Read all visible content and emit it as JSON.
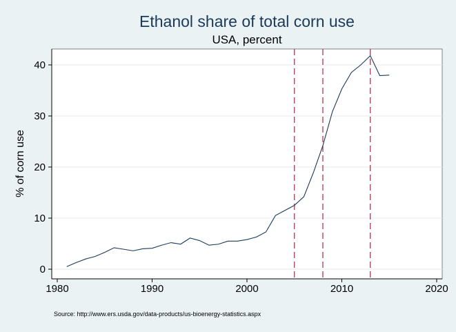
{
  "chart_data": {
    "type": "line",
    "title": "Ethanol share of total corn use",
    "subtitle": "USA, percent",
    "xlabel": "",
    "ylabel": "% of corn use",
    "xlim": [
      1980,
      2020
    ],
    "ylim": [
      0,
      43
    ],
    "x_ticks": [
      1980,
      1990,
      2000,
      2010,
      2020
    ],
    "y_ticks": [
      0,
      10,
      20,
      30,
      40
    ],
    "grid": "horizontal",
    "vertical_reference_lines": [
      2005,
      2008,
      2013
    ],
    "line_color": "#1a3a5c",
    "reference_line_color": "#b22240",
    "background_color": "#eaf2f3",
    "plot_background_color": "#ffffff",
    "x": [
      1981,
      1982,
      1983,
      1984,
      1985,
      1986,
      1987,
      1988,
      1989,
      1990,
      1991,
      1992,
      1993,
      1994,
      1995,
      1996,
      1997,
      1998,
      1999,
      2000,
      2001,
      2002,
      2003,
      2004,
      2005,
      2006,
      2007,
      2008,
      2009,
      2010,
      2011,
      2012,
      2013,
      2014,
      2015
    ],
    "values": [
      0.5,
      1.3,
      2.0,
      2.5,
      3.3,
      4.2,
      3.9,
      3.6,
      4.0,
      4.1,
      4.7,
      5.2,
      4.9,
      6.1,
      5.6,
      4.7,
      4.9,
      5.5,
      5.5,
      5.8,
      6.3,
      7.3,
      10.5,
      11.5,
      12.5,
      14.2,
      18.9,
      24.2,
      30.8,
      35.3,
      38.5,
      40.0,
      41.8,
      37.9,
      38.0
    ]
  },
  "source_note": "Source: http://www.ers.usda.gov/data-products/us-bioenergy-statistics.aspx"
}
